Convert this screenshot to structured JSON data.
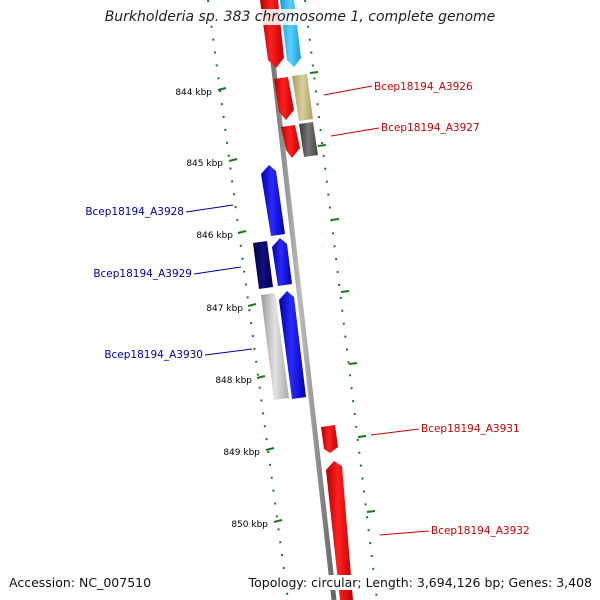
{
  "title": "Burkholderia sp. 383 chromosome 1, complete genome",
  "footer": {
    "accession": "Accession: NC_007510",
    "stats": "Topology: circular; Length: 3,694,126 bp; Genes: 3,408"
  },
  "colors": {
    "forward_labels": "#cc0000",
    "reverse_labels": "#0000aa",
    "ticks": "#1a7a1a",
    "backbone": "#8c8c8c"
  },
  "kbp_ticks": [
    "844 kbp",
    "845 kbp",
    "846 kbp",
    "847 kbp",
    "848 kbp",
    "849 kbp",
    "850 kbp"
  ],
  "gene_labels": [
    {
      "name": "Bcep18194_A3926",
      "strand": "forward"
    },
    {
      "name": "Bcep18194_A3927",
      "strand": "forward"
    },
    {
      "name": "Bcep18194_A3928",
      "strand": "reverse"
    },
    {
      "name": "Bcep18194_A3929",
      "strand": "reverse"
    },
    {
      "name": "Bcep18194_A3930",
      "strand": "reverse"
    },
    {
      "name": "Bcep18194_A3931",
      "strand": "forward"
    },
    {
      "name": "Bcep18194_A3932",
      "strand": "forward"
    }
  ]
}
